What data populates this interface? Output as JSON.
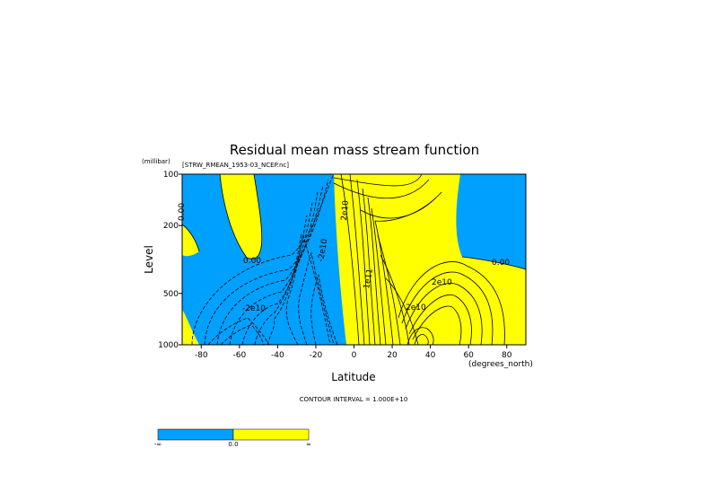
{
  "chart_data": {
    "type": "contour",
    "title": "Residual mean mass stream function",
    "subtitle": "[STRW_RMEAN_1953-03_NCEP.nc]",
    "xlabel": "Latitude",
    "xunits": "(degrees_north)",
    "ylabel": "Level",
    "yunits": "(millibar)",
    "xlim": [
      -90,
      90
    ],
    "ylim": [
      1000,
      100
    ],
    "yscale": "log",
    "x_ticks": [
      "-80",
      "-60",
      "-40",
      "-20",
      "0",
      "20",
      "40",
      "60",
      "80"
    ],
    "y_ticks": [
      "100",
      "200",
      "500",
      "1000"
    ],
    "contour_interval_text": "CONTOUR INTERVAL = 1.000E+10",
    "contour_labels": [
      "0.00",
      "0.00",
      "0.00",
      "-2e10",
      "-2e10",
      "2e10",
      "2e10",
      "2e10",
      "1e11"
    ],
    "fill_colors": {
      "negative": "#00a0ff",
      "positive": "#ffff00"
    },
    "colorbar": {
      "labels": [
        "-∞",
        "0.0",
        "∞"
      ],
      "colors": [
        "#00a0ff",
        "#ffff00"
      ]
    },
    "grid": false
  }
}
